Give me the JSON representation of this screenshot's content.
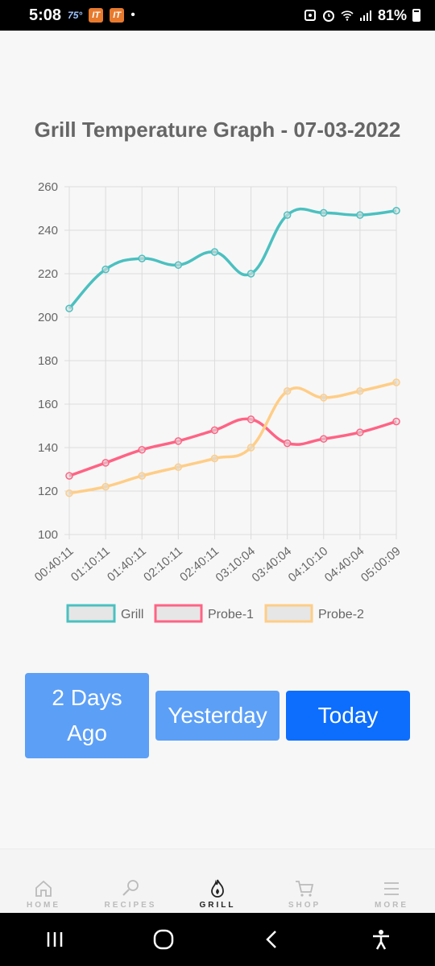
{
  "status_bar": {
    "time": "5:08",
    "temp": "75°",
    "app_icons": [
      "IT",
      "IT"
    ],
    "battery": "81%"
  },
  "title": "Grill Temperature Graph - 07-03-2022",
  "chart_data": {
    "type": "line",
    "x": [
      "00:40:11",
      "01:10:11",
      "01:40:11",
      "02:10:11",
      "02:40:11",
      "03:10:04",
      "03:40:04",
      "04:10:10",
      "04:40:04",
      "05:00:09"
    ],
    "series": [
      {
        "name": "Grill",
        "color": "#4bc0c0",
        "values": [
          204,
          222,
          227,
          224,
          230,
          220,
          247,
          248,
          247,
          249
        ]
      },
      {
        "name": "Probe-1",
        "color": "#ff6384",
        "values": [
          127,
          133,
          139,
          143,
          148,
          153,
          142,
          144,
          147,
          152
        ]
      },
      {
        "name": "Probe-2",
        "color": "#ffcd86",
        "values": [
          119,
          122,
          127,
          131,
          135,
          140,
          166,
          163,
          166,
          170
        ]
      }
    ],
    "ylim": [
      100,
      260
    ],
    "yticks": [
      100,
      120,
      140,
      160,
      180,
      200,
      220,
      240,
      260
    ],
    "grid": true,
    "legend": "bottom"
  },
  "buttons": {
    "two_days": "2 Days Ago",
    "yesterday": "Yesterday",
    "today": "Today"
  },
  "nav": {
    "home": "HOME",
    "recipes": "RECIPES",
    "grill": "GRILL",
    "shop": "SHOP",
    "more": "MORE"
  }
}
